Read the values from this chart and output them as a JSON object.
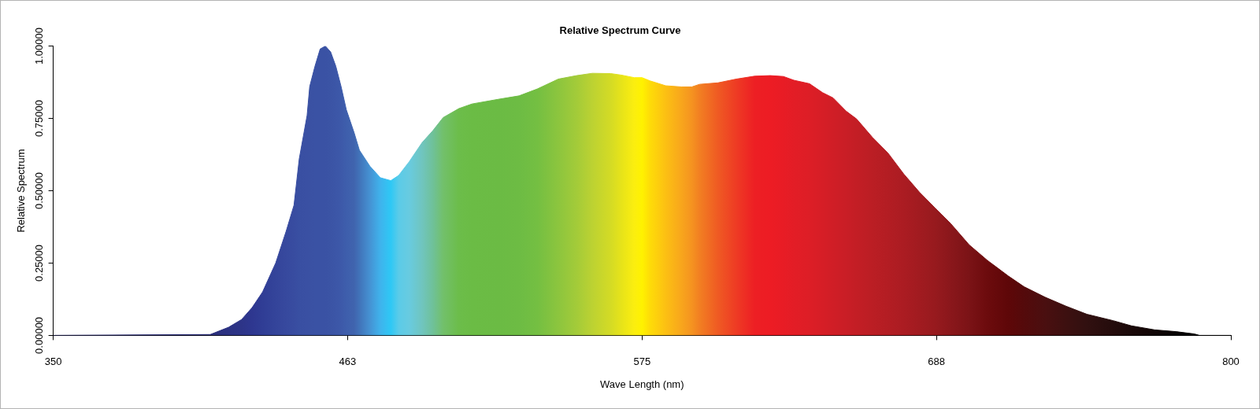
{
  "chart_data": {
    "type": "area",
    "title": "Relative Spectrum Curve",
    "xlabel": "Wave Length (nm)",
    "ylabel": "Relative Spectrum",
    "xlim": [
      350,
      800
    ],
    "ylim": [
      0,
      1
    ],
    "xticks": [
      350,
      {
        "value": 462.5,
        "label": "463"
      },
      575,
      {
        "value": 687.5,
        "label": "688"
      },
      800
    ],
    "yticks": [
      {
        "value": 0,
        "label": "0.00000"
      },
      {
        "value": 0.25,
        "label": "0.25000"
      },
      {
        "value": 0.5,
        "label": "0.50000"
      },
      {
        "value": 0.75,
        "label": "0.75000"
      },
      {
        "value": 1,
        "label": "1.00000"
      }
    ],
    "x": [
      350,
      410,
      417,
      422,
      426,
      430,
      435,
      439,
      442,
      444,
      447,
      448,
      450,
      452,
      454,
      456,
      458,
      460,
      462,
      465,
      467,
      471,
      475,
      479,
      482,
      486,
      491,
      495,
      499,
      505,
      510,
      520,
      528,
      535,
      543,
      550,
      556,
      563,
      567,
      572,
      575,
      578,
      584,
      590,
      594,
      597,
      604,
      611,
      618,
      624,
      629,
      633,
      639,
      644,
      648,
      653,
      657,
      663,
      669,
      675,
      681,
      687,
      693,
      700,
      707,
      715,
      721,
      729,
      737,
      745,
      755,
      762,
      771,
      779,
      786,
      788,
      800
    ],
    "values": [
      0,
      0.003,
      0.028,
      0.055,
      0.096,
      0.15,
      0.25,
      0.36,
      0.45,
      0.61,
      0.76,
      0.86,
      0.93,
      0.99,
      1.0,
      0.98,
      0.93,
      0.86,
      0.78,
      0.7,
      0.64,
      0.585,
      0.545,
      0.535,
      0.553,
      0.6,
      0.667,
      0.707,
      0.753,
      0.784,
      0.8,
      0.816,
      0.828,
      0.852,
      0.886,
      0.898,
      0.906,
      0.905,
      0.9,
      0.891,
      0.891,
      0.88,
      0.863,
      0.859,
      0.859,
      0.868,
      0.873,
      0.886,
      0.896,
      0.898,
      0.895,
      0.882,
      0.87,
      0.839,
      0.821,
      0.775,
      0.748,
      0.685,
      0.63,
      0.558,
      0.495,
      0.44,
      0.386,
      0.313,
      0.259,
      0.205,
      0.168,
      0.132,
      0.101,
      0.073,
      0.051,
      0.033,
      0.019,
      0.013,
      0.005,
      0,
      0
    ],
    "colors": [
      "#2a2a6e",
      "#2b2f7a",
      "#2c3283",
      "#2d3488",
      "#2e3790",
      "#303d95",
      "#34449a",
      "#37499e",
      "#384ca0",
      "#394fa2",
      "#3a50a3",
      "#3a51a3",
      "#3a52a4",
      "#3a52a4",
      "#3a52a4",
      "#3b54a5",
      "#3c56a7",
      "#3d59a9",
      "#3e5eac",
      "#4064ae",
      "#4173b9",
      "#4592d3",
      "#3fb3ec",
      "#2ec8f5",
      "#5bcbe8",
      "#68cbe0",
      "#70c5be",
      "#6fc19a",
      "#72c06b",
      "#6cbd4a",
      "#6bbc45",
      "#6bbb44",
      "#6dbc44",
      "#74bf42",
      "#8cc53e",
      "#a3cb39",
      "#bcd232",
      "#d4db25",
      "#e6e31a",
      "#fbee0f",
      "#fff200",
      "#fedc08",
      "#fcc013",
      "#f8a61c",
      "#f59320",
      "#f27f22",
      "#ef5a23",
      "#ee3b24",
      "#ed1f24",
      "#ed1c24",
      "#e81c25",
      "#e31d26",
      "#dd1e26",
      "#d61e26",
      "#d01e26",
      "#c91e26",
      "#c31e25",
      "#bb1e24",
      "#b31d23",
      "#ab1c22",
      "#a11b20",
      "#971a1e",
      "#8a171b",
      "#7b1316",
      "#6c0b0d",
      "#5e0708",
      "#540a0b",
      "#4a0f10",
      "#3d1010",
      "#311010",
      "#240c0c",
      "#1a0909",
      "#100505",
      "#080303",
      "#030101",
      "#000000",
      "#000000"
    ]
  }
}
